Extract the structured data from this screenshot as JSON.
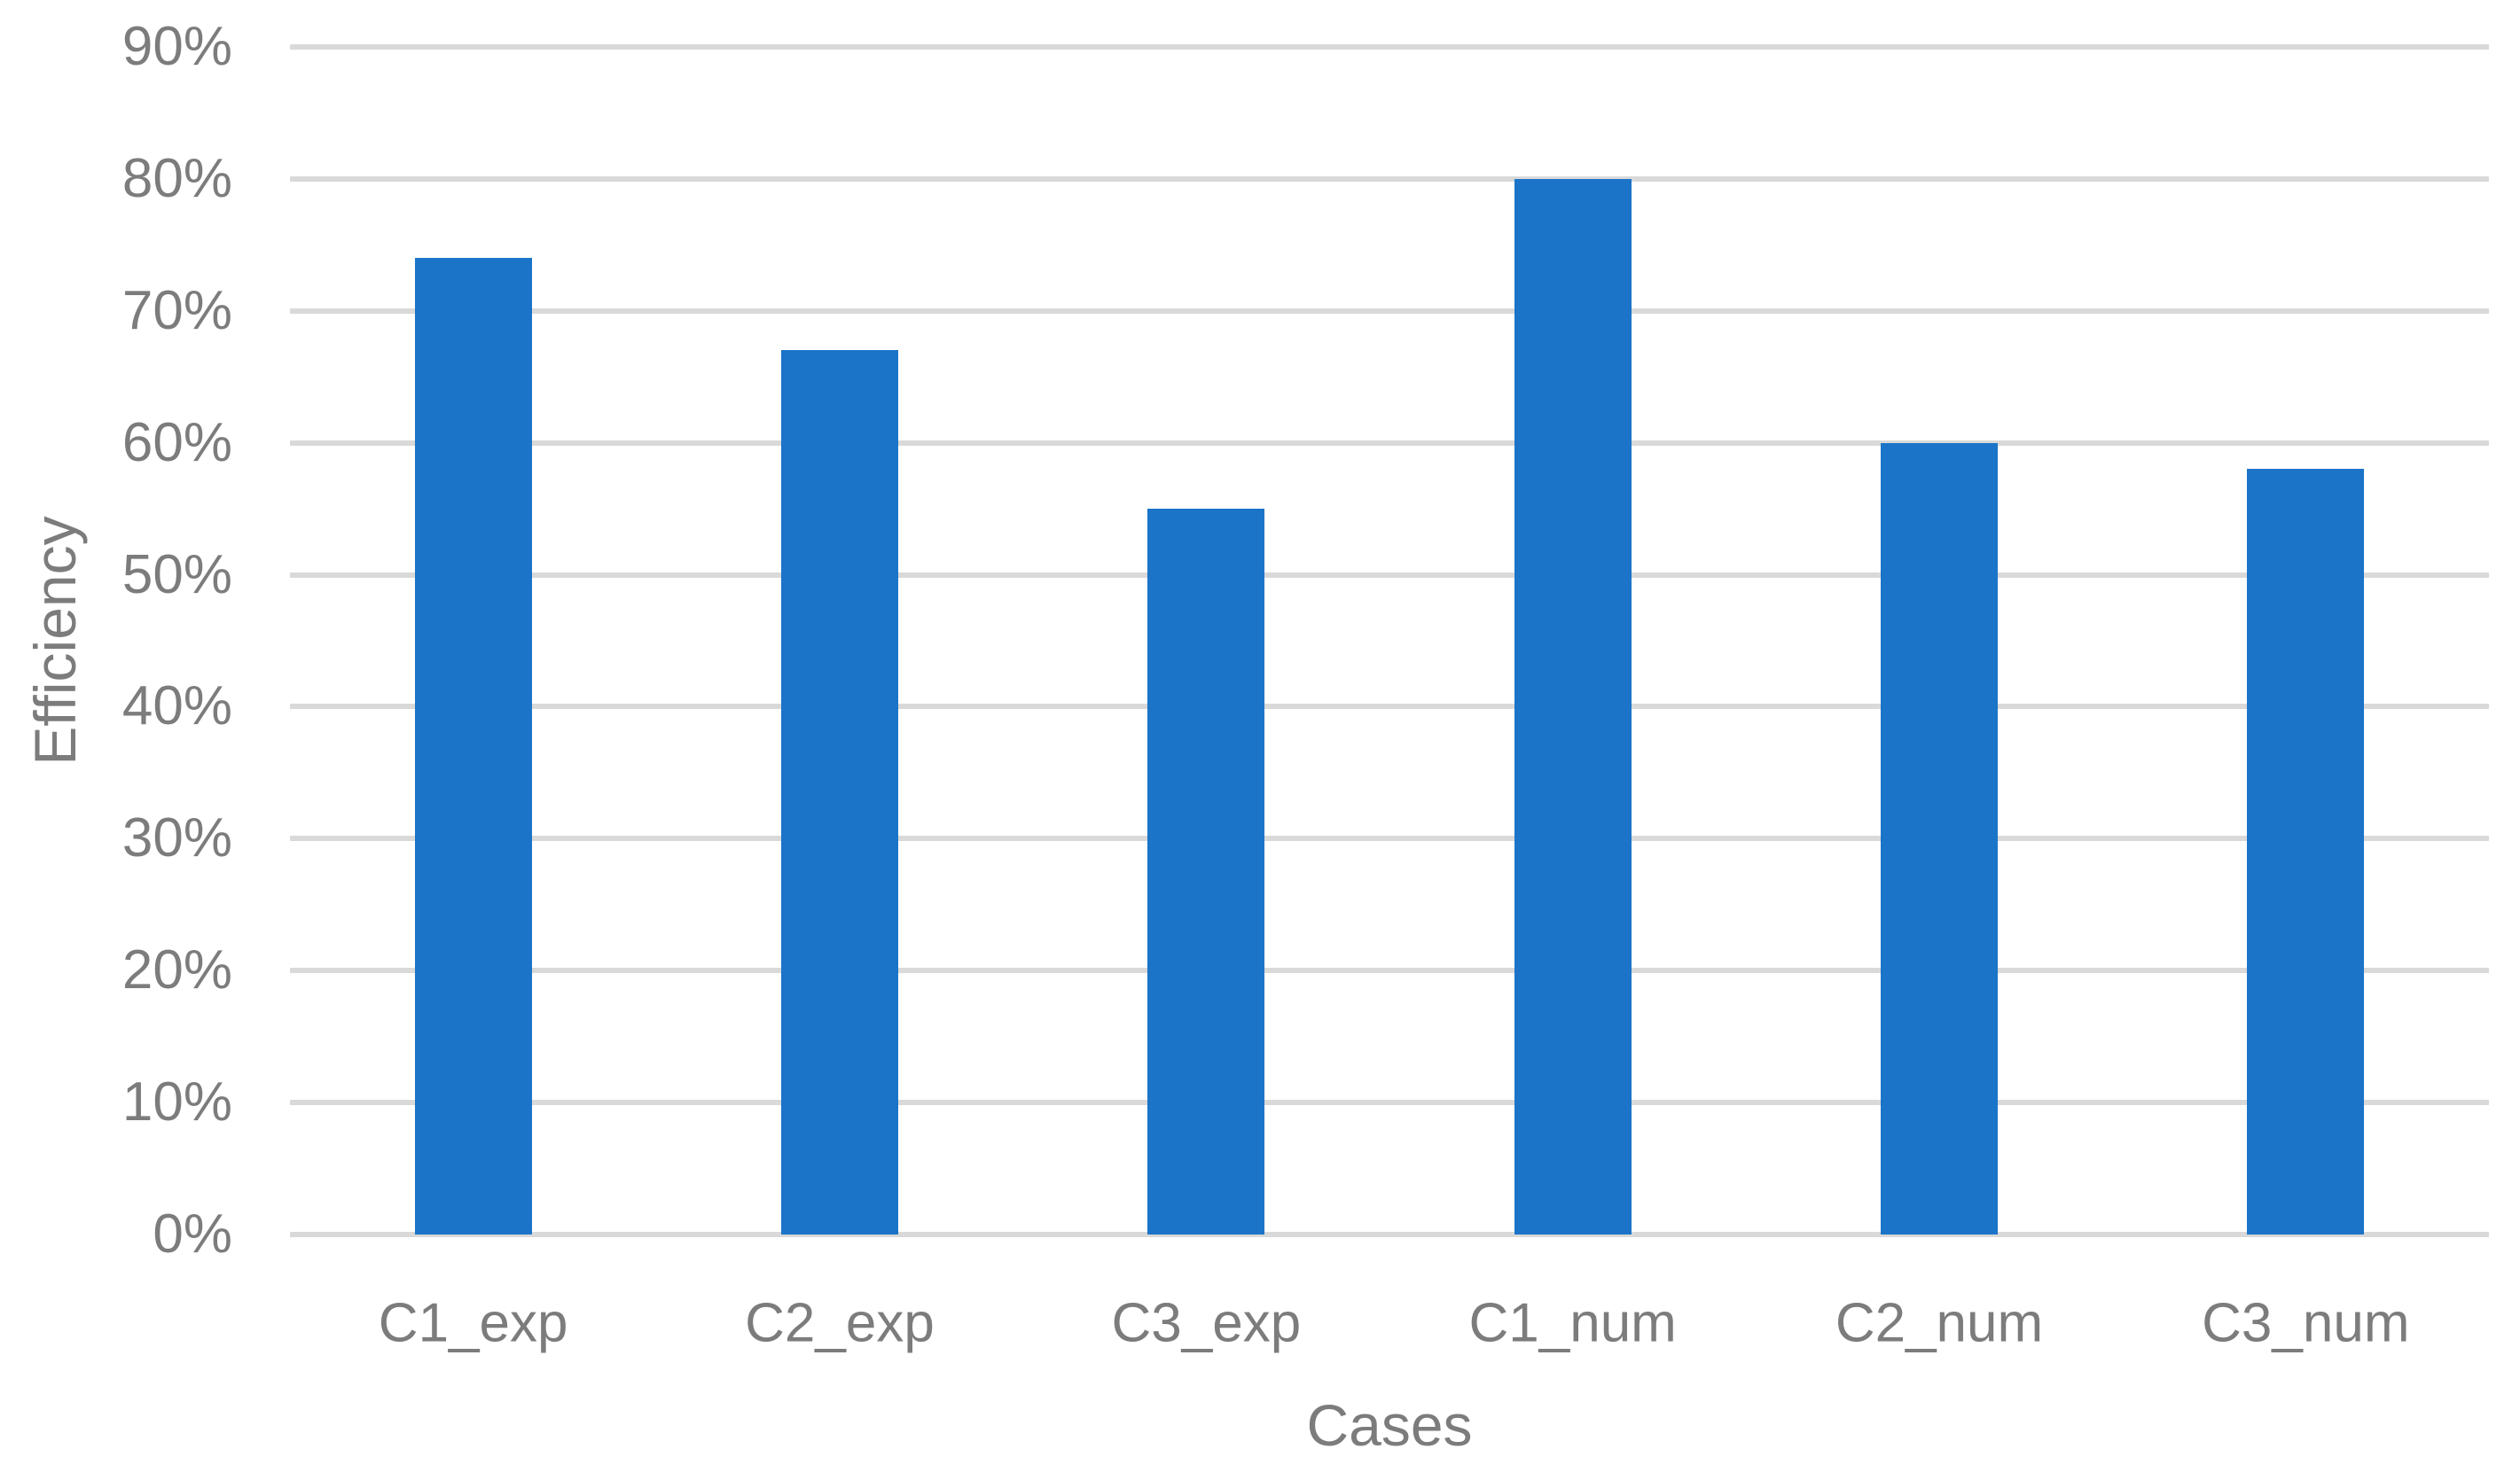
{
  "chart_data": {
    "type": "bar",
    "title": "",
    "xlabel": "Cases",
    "ylabel": "Efficiency",
    "categories": [
      "C1_exp",
      "C2_exp",
      "C3_exp",
      "C1_num",
      "C2_num",
      "C3_num"
    ],
    "values": [
      74,
      67,
      55,
      80,
      60,
      58
    ],
    "value_unit": "%",
    "ylim": [
      0,
      90
    ],
    "ytick_step": 10,
    "ytick_labels": [
      "0%",
      "10%",
      "20%",
      "30%",
      "40%",
      "50%",
      "60%",
      "70%",
      "80%",
      "90%"
    ],
    "grid": "horizontal-only",
    "legend": "none",
    "colors": {
      "bar": "#1B74C8",
      "gridline": "#D9D9D9",
      "axis_text": "#7C7C7C",
      "background": "#FFFFFF"
    }
  }
}
